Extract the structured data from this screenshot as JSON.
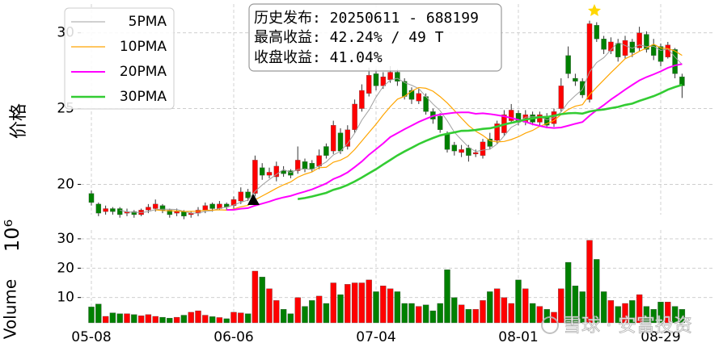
{
  "watermark": "雪球 · 安富投资",
  "chart_data": [
    {
      "type": "candlestick",
      "ylabel": "价格",
      "grid": true,
      "legend": "upper left",
      "up_color": "#ff0000",
      "down_color": "#008000",
      "ylim": [
        18.0,
        31.9
      ],
      "yticks": [
        20,
        25,
        30
      ],
      "annotation": [
        "历史发布: 20250611 - 688199",
        "最高收益: 42.24% / 49 T",
        "收盘收益: 41.04%"
      ],
      "open": [
        19.4,
        18.7,
        18.2,
        18.4,
        18.4,
        18.1,
        18.2,
        18.0,
        18.3,
        18.4,
        18.6,
        18.3,
        18.1,
        18.2,
        18.0,
        18.1,
        18.3,
        18.7,
        18.4,
        18.7,
        18.6,
        18.9,
        19.5,
        19.4,
        21.1,
        20.6,
        20.5,
        20.9,
        20.9,
        20.9,
        21.5,
        21.4,
        21.2,
        22.5,
        22.2,
        23.4,
        22.5,
        23.6,
        25.0,
        26.0,
        27.3,
        26.5,
        26.9,
        27.4,
        26.8,
        26.2,
        25.5,
        25.8,
        24.8,
        24.5,
        23.3,
        22.6,
        22.1,
        22.4,
        22.0,
        21.9,
        23.0,
        22.9,
        23.4,
        24.2,
        24.7,
        24.1,
        24.6,
        24.1,
        24.5,
        24.0,
        25.0,
        28.5,
        27.0,
        26.8,
        25.6,
        30.5,
        29.6,
        28.8,
        29.3,
        28.5,
        29.4,
        29.0,
        29.9,
        29.2,
        29.1,
        28.4,
        28.9,
        27.1
      ],
      "high": [
        19.6,
        18.8,
        18.6,
        18.5,
        18.5,
        18.4,
        18.3,
        18.4,
        18.7,
        19.0,
        18.7,
        18.4,
        18.4,
        18.3,
        18.2,
        18.5,
        18.8,
        18.8,
        18.9,
        18.8,
        19.2,
        19.8,
        19.7,
        21.9,
        21.4,
        21.1,
        21.5,
        21.2,
        21.0,
        22.5,
        21.7,
        21.6,
        22.3,
        22.7,
        24.2,
        23.7,
        23.9,
        25.6,
        26.6,
        27.7,
        27.6,
        27.4,
        27.8,
        27.6,
        27.0,
        26.4,
        26.3,
        26.0,
        25.0,
        24.7,
        23.5,
        22.8,
        22.6,
        22.6,
        22.3,
        23.0,
        23.4,
        24.2,
        24.9,
        25.3,
        24.9,
        24.9,
        24.8,
        24.8,
        24.7,
        25.0,
        27.0,
        29.1,
        27.3,
        27.0,
        30.8,
        30.7,
        29.8,
        29.7,
        29.6,
        29.8,
        29.6,
        30.4,
        30.1,
        29.6,
        29.3,
        29.4,
        29.0,
        27.3
      ],
      "low": [
        18.6,
        17.9,
        18.0,
        18.0,
        17.8,
        17.9,
        17.8,
        17.9,
        18.1,
        18.2,
        18.1,
        17.8,
        17.9,
        17.7,
        17.8,
        17.9,
        18.1,
        18.2,
        18.3,
        18.3,
        18.4,
        18.7,
        18.9,
        19.2,
        20.3,
        20.4,
        20.2,
        20.5,
        20.4,
        20.7,
        20.8,
        20.8,
        21.0,
        21.7,
        22.0,
        22.0,
        22.3,
        23.4,
        24.8,
        25.8,
        26.2,
        26.3,
        26.7,
        26.5,
        25.6,
        25.3,
        25.3,
        24.6,
        24.0,
        23.4,
        22.1,
        21.9,
        21.8,
        21.5,
        21.8,
        21.7,
        22.3,
        22.7,
        23.2,
        24.0,
        23.9,
        23.9,
        23.9,
        23.9,
        23.7,
        23.8,
        24.8,
        27.0,
        26.5,
        25.7,
        25.4,
        29.4,
        28.6,
        28.6,
        28.1,
        28.3,
        28.4,
        28.8,
        28.7,
        28.2,
        27.8,
        28.3,
        27.0,
        25.7
      ],
      "close": [
        18.8,
        18.1,
        18.4,
        18.2,
        18.0,
        18.2,
        18.0,
        18.3,
        18.5,
        18.7,
        18.3,
        18.0,
        18.2,
        17.9,
        18.1,
        18.3,
        18.6,
        18.4,
        18.7,
        18.5,
        19.0,
        19.5,
        19.1,
        21.6,
        20.6,
        20.8,
        21.2,
        20.7,
        20.6,
        21.6,
        21.0,
        21.0,
        21.9,
        21.9,
        23.9,
        22.2,
        23.6,
        25.3,
        26.2,
        27.2,
        26.5,
        27.1,
        27.4,
        26.8,
        25.8,
        25.6,
        26.0,
        24.8,
        24.3,
        23.6,
        22.3,
        22.2,
        22.3,
        21.9,
        22.1,
        22.8,
        22.5,
        24.0,
        24.6,
        24.9,
        24.1,
        24.6,
        24.1,
        24.6,
        23.9,
        24.8,
        26.5,
        27.3,
        26.8,
        25.9,
        30.6,
        29.6,
        28.9,
        29.4,
        28.4,
        29.5,
        28.7,
        30.0,
        28.9,
        28.5,
        28.1,
        29.2,
        27.3,
        26.5
      ],
      "series": [
        {
          "name": "5PMA",
          "color": "#a0a0a0",
          "width": 1,
          "values": [
            null,
            null,
            null,
            null,
            18.3,
            18.18,
            18.16,
            18.14,
            18.2,
            18.34,
            18.36,
            18.36,
            18.34,
            18.22,
            18.1,
            18.1,
            18.22,
            18.26,
            18.42,
            18.5,
            18.64,
            18.82,
            18.96,
            19.54,
            19.96,
            20.32,
            20.66,
            20.98,
            20.78,
            20.98,
            21.02,
            20.98,
            21.22,
            21.48,
            21.94,
            22.18,
            22.7,
            23.38,
            24.24,
            24.9,
            25.76,
            26.46,
            26.88,
            27.0,
            26.72,
            26.54,
            26.32,
            25.8,
            25.3,
            24.86,
            24.2,
            23.44,
            22.94,
            22.46,
            22.16,
            22.26,
            22.32,
            22.66,
            23.2,
            23.76,
            24.02,
            24.44,
            24.46,
            24.46,
            24.26,
            24.4,
            24.78,
            25.42,
            25.86,
            26.26,
            27.42,
            28.04,
            28.36,
            28.88,
            29.38,
            29.16,
            28.98,
            29.2,
            29.1,
            29.12,
            28.84,
            28.94,
            28.4,
            27.92
          ]
        },
        {
          "name": "10PMA",
          "color": "#ffa500",
          "width": 1.2,
          "values": [
            null,
            null,
            null,
            null,
            null,
            null,
            null,
            null,
            null,
            18.32,
            18.27,
            18.26,
            18.24,
            18.21,
            18.22,
            18.23,
            18.29,
            18.3,
            18.32,
            18.3,
            18.37,
            18.52,
            18.61,
            18.98,
            19.23,
            19.48,
            19.74,
            19.97,
            20.16,
            20.47,
            20.67,
            20.82,
            21.1,
            21.13,
            21.46,
            21.6,
            21.84,
            22.3,
            22.86,
            23.42,
            23.97,
            24.58,
            25.13,
            25.62,
            25.81,
            26.15,
            26.39,
            26.34,
            26.15,
            25.79,
            25.37,
            24.88,
            24.37,
            23.88,
            23.51,
            23.23,
            22.88,
            22.8,
            22.83,
            22.96,
            23.14,
            23.38,
            23.56,
            23.83,
            24.01,
            24.21,
            24.61,
            24.94,
            25.16,
            25.26,
            25.91,
            26.41,
            26.89,
            27.37,
            27.82,
            28.29,
            28.51,
            28.78,
            28.99,
            29.25,
            29.0,
            28.96,
            28.8,
            28.51
          ]
        },
        {
          "name": "20PMA",
          "color": "#ff00ff",
          "width": 2,
          "values": [
            null,
            null,
            null,
            null,
            null,
            null,
            null,
            null,
            null,
            null,
            null,
            null,
            null,
            null,
            null,
            null,
            null,
            null,
            null,
            18.31,
            18.32,
            18.39,
            18.43,
            18.6,
            18.73,
            18.86,
            19.02,
            19.14,
            19.24,
            19.39,
            19.52,
            19.67,
            19.86,
            20.06,
            20.35,
            20.54,
            20.79,
            21.14,
            21.51,
            21.95,
            22.32,
            22.7,
            23.12,
            23.38,
            23.64,
            23.88,
            24.12,
            24.32,
            24.51,
            24.61,
            24.67,
            24.73,
            24.75,
            24.75,
            24.66,
            24.69,
            24.64,
            24.57,
            24.49,
            24.38,
            24.26,
            24.13,
            23.97,
            23.86,
            23.76,
            23.72,
            23.75,
            23.87,
            24.0,
            24.11,
            24.53,
            24.9,
            25.23,
            25.6,
            25.92,
            26.25,
            26.56,
            26.86,
            27.08,
            27.26,
            27.46,
            27.69,
            27.85,
            27.94
          ]
        },
        {
          "name": "30PMA",
          "color": "#33cc33",
          "width": 2.6,
          "values": [
            null,
            null,
            null,
            null,
            null,
            null,
            null,
            null,
            null,
            null,
            null,
            null,
            null,
            null,
            null,
            null,
            null,
            null,
            null,
            null,
            null,
            null,
            null,
            null,
            null,
            null,
            null,
            null,
            null,
            19.03,
            19.1,
            19.2,
            19.32,
            19.44,
            19.64,
            19.77,
            19.96,
            20.19,
            20.45,
            20.73,
            21.0,
            21.31,
            21.61,
            21.91,
            22.17,
            22.41,
            22.66,
            22.87,
            23.06,
            23.23,
            23.34,
            23.43,
            23.53,
            23.54,
            23.59,
            23.66,
            23.7,
            23.81,
            23.95,
            24.06,
            24.16,
            24.28,
            24.35,
            24.44,
            24.44,
            24.53,
            24.63,
            24.69,
            24.71,
            24.67,
            24.81,
            24.89,
            24.94,
            25.03,
            25.11,
            25.24,
            25.33,
            25.51,
            25.66,
            25.82,
            26.02,
            26.25,
            26.42,
            26.57
          ]
        }
      ]
    },
    {
      "type": "bar",
      "ylabel": "Volume",
      "offset_label": "10⁶",
      "grid": true,
      "ylim": [
        1.4,
        33
      ],
      "yticks": [
        10,
        20,
        30
      ],
      "categories": [
        "05-08",
        null,
        null,
        null,
        null,
        null,
        null,
        null,
        null,
        null,
        null,
        null,
        null,
        null,
        null,
        null,
        null,
        null,
        null,
        null,
        "06-06",
        null,
        null,
        null,
        null,
        null,
        null,
        null,
        null,
        null,
        null,
        null,
        null,
        null,
        null,
        null,
        null,
        null,
        null,
        null,
        "07-04",
        null,
        null,
        null,
        null,
        null,
        null,
        null,
        null,
        null,
        null,
        null,
        null,
        null,
        null,
        null,
        null,
        null,
        null,
        null,
        "08-01",
        null,
        null,
        null,
        null,
        null,
        null,
        null,
        null,
        null,
        null,
        null,
        null,
        null,
        null,
        null,
        null,
        null,
        null,
        null,
        "08-29",
        null,
        null,
        null
      ],
      "values": [
        6.8,
        7.8,
        3.6,
        4.8,
        4.5,
        4.5,
        4.2,
        3.8,
        4.2,
        3.6,
        3.3,
        3.0,
        3.3,
        4.0,
        5.0,
        5.5,
        4.0,
        3.5,
        3.2,
        2.8,
        5.0,
        4.8,
        4.5,
        19.0,
        17.0,
        13.0,
        9.0,
        6.0,
        4.5,
        10.0,
        7.0,
        9.0,
        10.5,
        8.0,
        15.0,
        11.0,
        14.5,
        15.0,
        15.0,
        16.0,
        12.0,
        14.0,
        13.0,
        12.0,
        8.0,
        8.0,
        7.0,
        7.5,
        5.5,
        8.0,
        19.5,
        10.0,
        7.5,
        6.0,
        6.0,
        9.0,
        12.0,
        13.0,
        10.0,
        8.0,
        16.0,
        13.0,
        8.0,
        7.0,
        6.0,
        5.0,
        13.0,
        22.0,
        14.0,
        12.0,
        29.5,
        23.0,
        12.0,
        9.0,
        7.0,
        8.0,
        9.0,
        11.0,
        7.0,
        6.0,
        8.5,
        8.5,
        7.0,
        6.0
      ]
    }
  ]
}
